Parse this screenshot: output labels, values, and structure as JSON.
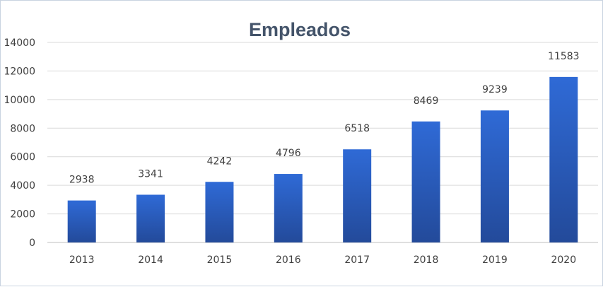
{
  "chart_data": {
    "type": "bar",
    "title": "Empleados",
    "xlabel": "",
    "ylabel": "",
    "categories": [
      "2013",
      "2014",
      "2015",
      "2016",
      "2017",
      "2018",
      "2019",
      "2020"
    ],
    "values": [
      2938,
      3341,
      4242,
      4796,
      6518,
      8469,
      9239,
      11583
    ],
    "ylim": [
      0,
      14000
    ],
    "yticks": [
      "0",
      "2000",
      "4000",
      "6000",
      "8000",
      "10000",
      "12000",
      "14000"
    ],
    "grid": true,
    "legend": "none",
    "colors": {
      "bar_top": "#2f6ad6",
      "bar_bottom": "#234a9a",
      "grid": "#d9d9d9",
      "axis": "#bfbfbf",
      "title": "#44546a",
      "text": "#404040"
    }
  }
}
